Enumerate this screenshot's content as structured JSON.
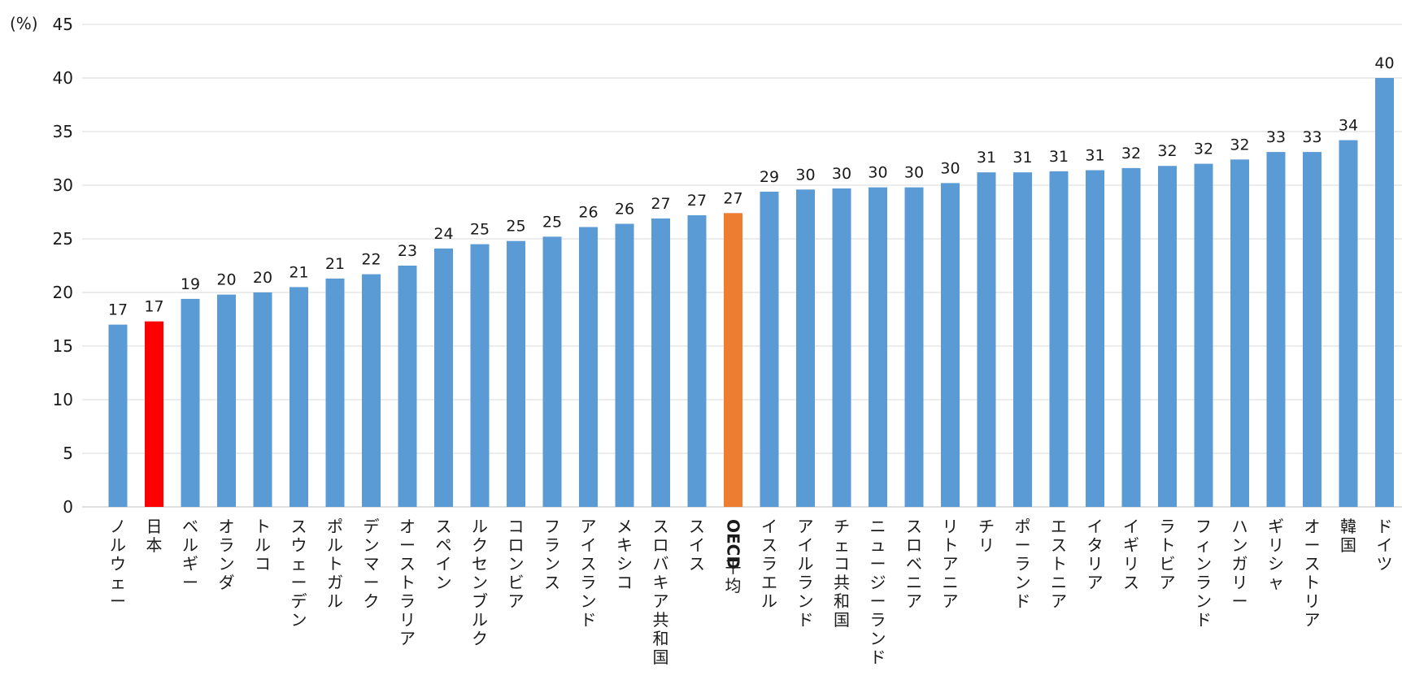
{
  "chart_data": {
    "type": "bar",
    "title": "",
    "xlabel": "",
    "ylabel": "",
    "y_unit_label": "(%)",
    "ylim": [
      0,
      45
    ],
    "yticks": [
      0,
      5,
      10,
      15,
      20,
      25,
      30,
      35,
      40,
      45
    ],
    "grid": true,
    "legend": "none",
    "categories": [
      "ノルウェー",
      "日本",
      "ベルギー",
      "オランダ",
      "トルコ",
      "スウェーデン",
      "ポルトガル",
      "デンマーク",
      "オーストラリア",
      "スペイン",
      "ルクセンブルク",
      "コロンビア",
      "フランス",
      "アイスランド",
      "メキシコ",
      "スロバキア共和国",
      "スイス",
      "OECD平均",
      "イスラエル",
      "アイルランド",
      "チェコ共和国",
      "ニュージーランド",
      "スロベニア",
      "リトアニア",
      "チリ",
      "ポーランド",
      "エストニア",
      "イタリア",
      "イギリス",
      "ラトビア",
      "フィンランド",
      "ハンガリー",
      "ギリシャ",
      "オーストリア",
      "韓国",
      "ドイツ"
    ],
    "values": [
      17.0,
      17.3,
      19.4,
      19.8,
      20.0,
      20.5,
      21.3,
      21.7,
      22.5,
      24.1,
      24.5,
      24.8,
      25.2,
      26.1,
      26.4,
      26.9,
      27.2,
      27.4,
      29.4,
      29.6,
      29.7,
      29.8,
      29.8,
      30.2,
      31.2,
      31.2,
      31.3,
      31.4,
      31.6,
      31.8,
      32.0,
      32.4,
      33.1,
      33.1,
      34.2,
      40.0
    ],
    "data_labels": [
      "17",
      "17",
      "19",
      "20",
      "20",
      "21",
      "21",
      "22",
      "23",
      "24",
      "25",
      "25",
      "25",
      "26",
      "26",
      "27",
      "27",
      "27",
      "29",
      "30",
      "30",
      "30",
      "30",
      "30",
      "31",
      "31",
      "31",
      "31",
      "32",
      "32",
      "32",
      "32",
      "33",
      "33",
      "34",
      "40"
    ],
    "colors": {
      "default": "#5b9bd5",
      "highlight_japan": "#ff0000",
      "highlight_oecd": "#ed7d31"
    },
    "highlight": {
      "日本": "highlight_japan",
      "OECD平均": "highlight_oecd"
    }
  }
}
